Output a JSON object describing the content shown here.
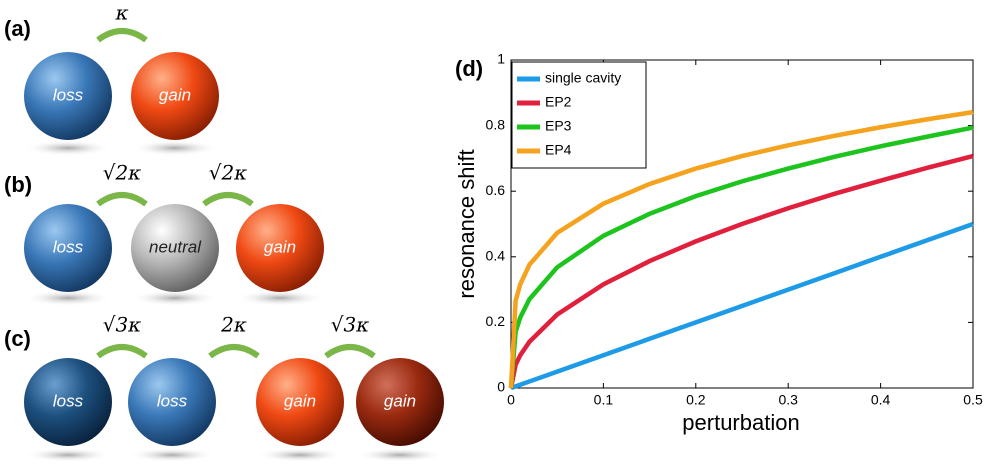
{
  "diagram": {
    "panels": [
      {
        "label": "(a)",
        "couplings": [
          "κ"
        ],
        "spheres": [
          "loss",
          "gain"
        ]
      },
      {
        "label": "(b)",
        "couplings": [
          "√2κ",
          "√2κ"
        ],
        "spheres": [
          "loss",
          "neutral",
          "gain"
        ]
      },
      {
        "label": "(c)",
        "couplings": [
          "√3κ",
          "2κ",
          "√3κ"
        ],
        "spheres": [
          "loss",
          "loss",
          "gain",
          "gain"
        ]
      }
    ]
  },
  "chart_data": {
    "type": "line",
    "panel_label": "(d)",
    "x_label": "perturbation",
    "y_label": "resonance shift",
    "x": [
      0,
      0.005,
      0.01,
      0.02,
      0.05,
      0.1,
      0.15,
      0.2,
      0.25,
      0.3,
      0.35,
      0.4,
      0.45,
      0.5
    ],
    "series": [
      {
        "name": "single cavity",
        "color": "#1e9be6",
        "values": [
          0,
          0.005,
          0.01,
          0.02,
          0.05,
          0.1,
          0.15,
          0.2,
          0.25,
          0.3,
          0.35,
          0.4,
          0.45,
          0.5
        ]
      },
      {
        "name": "EP2",
        "color": "#e0203c",
        "values": [
          0,
          0.071,
          0.1,
          0.141,
          0.224,
          0.316,
          0.387,
          0.447,
          0.5,
          0.548,
          0.592,
          0.632,
          0.671,
          0.707
        ]
      },
      {
        "name": "EP3",
        "color": "#1ec41e",
        "values": [
          0,
          0.171,
          0.215,
          0.271,
          0.368,
          0.464,
          0.531,
          0.585,
          0.63,
          0.669,
          0.705,
          0.737,
          0.766,
          0.794
        ]
      },
      {
        "name": "EP4",
        "color": "#f5a21e",
        "values": [
          0,
          0.266,
          0.316,
          0.376,
          0.473,
          0.562,
          0.622,
          0.669,
          0.707,
          0.74,
          0.769,
          0.795,
          0.819,
          0.841
        ]
      }
    ],
    "xlim": [
      0,
      0.5
    ],
    "ylim": [
      0,
      1
    ],
    "xticks": [
      0,
      0.1,
      0.2,
      0.3,
      0.4,
      0.5
    ],
    "yticks": [
      0,
      0.2,
      0.4,
      0.6,
      0.8,
      1
    ],
    "legend": "upper-left"
  }
}
